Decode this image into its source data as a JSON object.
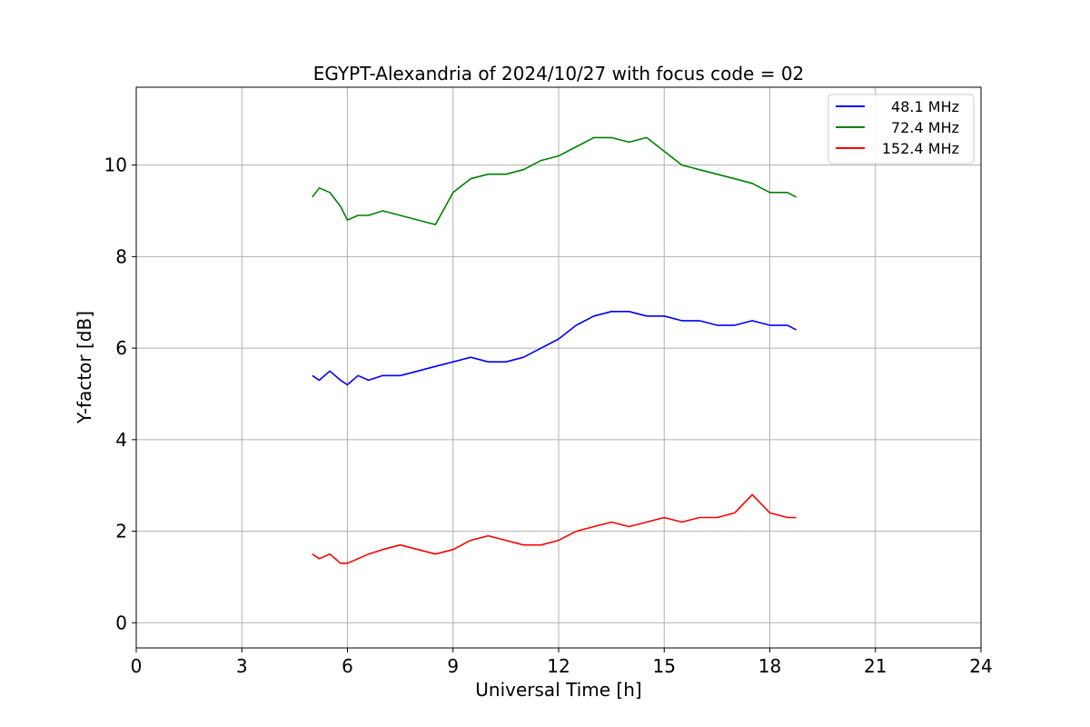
{
  "chart_data": {
    "type": "line",
    "title": "EGYPT-Alexandria of 2024/10/27 with focus code = 02",
    "xlabel": "Universal Time [h]",
    "ylabel": "Y-factor [dB]",
    "xlim": [
      0,
      24
    ],
    "ylim": [
      -0.55,
      11.7
    ],
    "xticks": [
      0,
      3,
      6,
      9,
      12,
      15,
      18,
      21,
      24
    ],
    "yticks": [
      0,
      2,
      4,
      6,
      8,
      10
    ],
    "grid": true,
    "legend_position": "top-right",
    "series": [
      {
        "name": "48.1 MHz",
        "color": "#0000ff",
        "x": [
          5.0,
          5.2,
          5.5,
          5.8,
          6.0,
          6.3,
          6.6,
          7.0,
          7.5,
          8.0,
          8.5,
          9.0,
          9.5,
          10.0,
          10.5,
          11.0,
          11.5,
          12.0,
          12.5,
          13.0,
          13.5,
          14.0,
          14.5,
          15.0,
          15.5,
          16.0,
          16.5,
          17.0,
          17.5,
          18.0,
          18.5,
          18.75
        ],
        "values": [
          5.4,
          5.3,
          5.5,
          5.3,
          5.2,
          5.4,
          5.3,
          5.4,
          5.4,
          5.5,
          5.6,
          5.7,
          5.8,
          5.7,
          5.7,
          5.8,
          6.0,
          6.2,
          6.5,
          6.7,
          6.8,
          6.8,
          6.7,
          6.7,
          6.6,
          6.6,
          6.5,
          6.5,
          6.6,
          6.5,
          6.5,
          6.4
        ]
      },
      {
        "name": "72.4 MHz",
        "color": "#008000",
        "x": [
          5.0,
          5.2,
          5.5,
          5.8,
          6.0,
          6.3,
          6.6,
          7.0,
          7.5,
          8.0,
          8.5,
          9.0,
          9.5,
          10.0,
          10.5,
          11.0,
          11.5,
          12.0,
          12.5,
          13.0,
          13.5,
          14.0,
          14.5,
          15.0,
          15.5,
          16.0,
          16.5,
          17.0,
          17.5,
          18.0,
          18.5,
          18.75
        ],
        "values": [
          9.3,
          9.5,
          9.4,
          9.1,
          8.8,
          8.9,
          8.9,
          9.0,
          8.9,
          8.8,
          8.7,
          9.4,
          9.7,
          9.8,
          9.8,
          9.9,
          10.1,
          10.2,
          10.4,
          10.6,
          10.6,
          10.5,
          10.6,
          10.3,
          10.0,
          9.9,
          9.8,
          9.7,
          9.6,
          9.4,
          9.4,
          9.3
        ]
      },
      {
        "name": "152.4 MHz",
        "color": "#ff0000",
        "x": [
          5.0,
          5.2,
          5.5,
          5.8,
          6.0,
          6.3,
          6.6,
          7.0,
          7.5,
          8.0,
          8.5,
          9.0,
          9.5,
          10.0,
          10.5,
          11.0,
          11.5,
          12.0,
          12.5,
          13.0,
          13.5,
          14.0,
          14.5,
          15.0,
          15.5,
          16.0,
          16.5,
          17.0,
          17.5,
          18.0,
          18.5,
          18.75
        ],
        "values": [
          1.5,
          1.4,
          1.5,
          1.3,
          1.3,
          1.4,
          1.5,
          1.6,
          1.7,
          1.6,
          1.5,
          1.6,
          1.8,
          1.9,
          1.8,
          1.7,
          1.7,
          1.8,
          2.0,
          2.1,
          2.2,
          2.1,
          2.2,
          2.3,
          2.2,
          2.3,
          2.3,
          2.4,
          2.8,
          2.4,
          2.3,
          2.3
        ]
      }
    ]
  }
}
